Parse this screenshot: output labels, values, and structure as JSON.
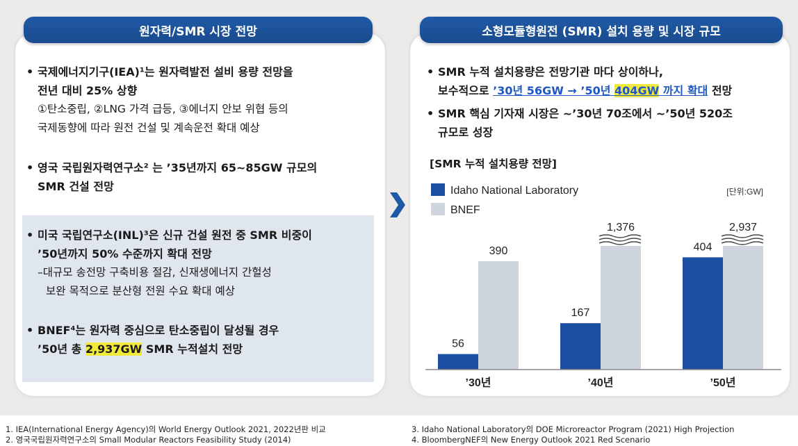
{
  "left": {
    "header": "원자력/SMR 시장 전망",
    "b1_line1": "국제에너지기구(IEA)¹는 원자력발전 설비 용량 전망을",
    "b1_line2": "전년 대비 25% 상향",
    "b1_sub1": "①탄소중립, ②LNG 가격 급등, ③에너지 안보 위협 등의",
    "b1_sub2": "국제동향에 따라 원전 건설 및 계속운전 확대 예상",
    "b2_line1": "영국 국립원자력연구소² 는 ’35년까지 65~85GW 규모의",
    "b2_line2": "SMR 건설 전망",
    "b3_line1": "미국 국립연구소(INL)³은 신규 건설 원전 중 SMR 비중이",
    "b3_line2": "’50년까지 50% 수준까지 확대 전망",
    "b3_sub1": "–대규모 송전망 구축비용 절감, 신재생에너지 간헐성",
    "b3_sub2": "보완 목적으로 분산형 전원 수요 확대 예상",
    "b4_line1": "BNEF⁴는 원자력 중심으로 탄소중립이 달성될 경우",
    "b4_pre": "’50년 총 ",
    "b4_hl": "2,937GW",
    "b4_post": " SMR 누적설치 전망"
  },
  "right": {
    "header": "소형모듈형원전 (SMR) 설치 용량 및 시장 규모",
    "b1_line1": "SMR 누적 설치용량은 전망기관 마다 상이하나,",
    "b1_pre": "보수적으로 ",
    "b1_link_a": "’30년 56GW → ’50년 ",
    "b1_link_hl": "404GW",
    "b1_link_b": " 까지 확대",
    "b1_post": " 전망",
    "b2_line1": "SMR 핵심 기자재 시장은 ~’30년 70조에서 ~’50년 520조",
    "b2_line2": "규모로 성장",
    "chart_title": "[SMR 누적 설치용량 전망]"
  },
  "chart_data": {
    "type": "bar",
    "categories": [
      "’30년",
      "’40년",
      "’50년"
    ],
    "series": [
      {
        "name": "Idaho National Laboratory",
        "values": [
          56,
          167,
          404
        ],
        "color": "#1b4fa3"
      },
      {
        "name": "BNEF",
        "values": [
          390,
          1376,
          2937
        ],
        "color": "#cfd5dd"
      }
    ],
    "value_labels": [
      [
        "56",
        "167",
        "404"
      ],
      [
        "390",
        "1,376",
        "2,937"
      ]
    ],
    "broken_axis": true,
    "unit": "[단위:GW]",
    "legend_position": "top-left"
  },
  "footer": {
    "fn1": "1. IEA(International Energy Agency)의 World Energy Outlook 2021, 2022년판 비교",
    "fn2": "2. 영국국립원자력연구소의 Small Modular Reactors Feasibility Study (2014)",
    "fn3": "3. Idaho National Laboratory의 DOE Microreactor Program (2021) High Projection",
    "fn4": "4. BloombergNEF의 New Energy Outlook 2021 Red Scenario"
  },
  "colors": {
    "header": "#1f5aa6",
    "highlight": "#f2ea3a",
    "link": "#1f58c4"
  }
}
